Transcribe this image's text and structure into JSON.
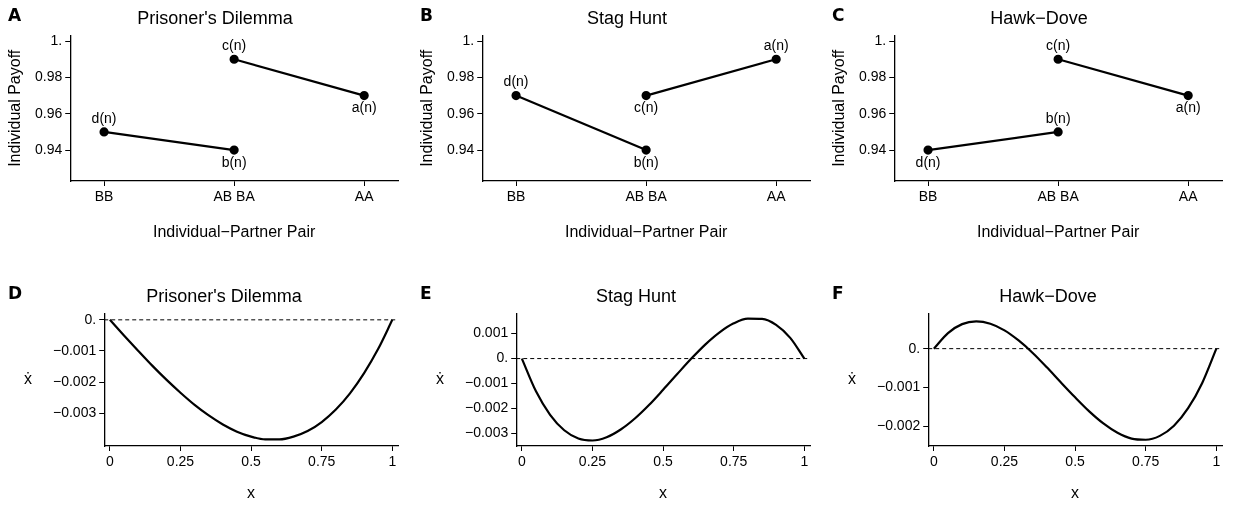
{
  "chart_data": [
    {
      "type": "line",
      "title": "Prisoner's Dilemma",
      "xlabel": "Individual−Partner Pair",
      "ylabel": "Individual Payoff",
      "categories": [
        "BB",
        "AB BA",
        "AA"
      ],
      "series": [
        {
          "color": "#000000",
          "values": [
            0.95,
            0.94,
            null
          ]
        },
        {
          "color": "#000000",
          "values": [
            null,
            0.99,
            0.97
          ]
        }
      ],
      "ylim": [
        0.923,
        1.003
      ],
      "yticks": [
        0.94,
        0.96,
        0.98,
        {
          "value": 1,
          "label": "1."
        }
      ],
      "marker": "circle",
      "line_style": "solid",
      "grid": false,
      "legend": false,
      "annotations": [
        "A",
        {
          "text": "d(n)",
          "x": "BB",
          "y": 0.95
        },
        {
          "text": "b(n)",
          "x": "AB BA",
          "y": 0.94
        },
        {
          "text": "c(n)",
          "x": "AB BA",
          "y": 0.99
        },
        {
          "text": "a(n)",
          "x": "AA",
          "y": 0.97
        }
      ]
    },
    {
      "type": "line",
      "title": "Stag Hunt",
      "xlabel": "Individual−Partner Pair",
      "ylabel": "Individual Payoff",
      "categories": [
        "BB",
        "AB BA",
        "AA"
      ],
      "series": [
        {
          "color": "#000000",
          "values": [
            0.97,
            0.94,
            null
          ]
        },
        {
          "color": "#000000",
          "values": [
            null,
            0.97,
            0.99
          ]
        }
      ],
      "ylim": [
        0.923,
        1.003
      ],
      "yticks": [
        0.94,
        0.96,
        0.98,
        {
          "value": 1,
          "label": "1."
        }
      ],
      "marker": "circle",
      "line_style": "solid",
      "grid": false,
      "legend": false,
      "annotations": [
        "B",
        {
          "text": "d(n)",
          "x": "BB",
          "y": 0.97
        },
        {
          "text": "b(n)",
          "x": "AB BA",
          "y": 0.94
        },
        {
          "text": "c(n)",
          "x": "AB BA",
          "y": 0.97
        },
        {
          "text": "a(n)",
          "x": "AA",
          "y": 0.99
        }
      ]
    },
    {
      "type": "line",
      "title": "Hawk−Dove",
      "xlabel": "Individual−Partner Pair",
      "ylabel": "Individual Payoff",
      "categories": [
        "BB",
        "AB BA",
        "AA"
      ],
      "series": [
        {
          "color": "#000000",
          "values": [
            0.94,
            0.95,
            null
          ]
        },
        {
          "color": "#000000",
          "values": [
            null,
            0.99,
            0.97
          ]
        }
      ],
      "ylim": [
        0.923,
        1.003
      ],
      "yticks": [
        0.94,
        0.96,
        0.98,
        {
          "value": 1,
          "label": "1."
        }
      ],
      "marker": "circle",
      "line_style": "solid",
      "grid": false,
      "legend": false,
      "annotations": [
        "C",
        {
          "text": "d(n)",
          "x": "BB",
          "y": 0.94
        },
        {
          "text": "b(n)",
          "x": "AB BA",
          "y": 0.95
        },
        {
          "text": "c(n)",
          "x": "AB BA",
          "y": 0.99
        },
        {
          "text": "a(n)",
          "x": "AA",
          "y": 0.97
        }
      ]
    },
    {
      "type": "line",
      "title": "Prisoner's Dilemma",
      "xlabel": "x",
      "ylabel": "ẋ",
      "x": [
        0,
        0.05,
        0.1,
        0.15,
        0.2,
        0.25,
        0.3,
        0.35,
        0.4,
        0.45,
        0.5,
        0.55,
        0.6,
        0.65,
        0.7,
        0.75,
        0.8,
        0.85,
        0.9,
        0.95,
        1
      ],
      "series": [
        {
          "color": "#000000",
          "values": [
            0,
            -0.0005,
            -0.00099,
            -0.00147,
            -0.00192,
            -0.00234,
            -0.00273,
            -0.00307,
            -0.00336,
            -0.00359,
            -0.00375,
            -0.00384,
            -0.00384,
            -0.00375,
            -0.00357,
            -0.00328,
            -0.00288,
            -0.00236,
            -0.00171,
            -0.00093,
            0
          ]
        }
      ],
      "xlim": [
        -0.02,
        1.02
      ],
      "xticks": [
        0,
        0.25,
        0.5,
        0.75,
        1
      ],
      "ylim": [
        -0.00405,
        0.0002
      ],
      "yticks": [
        {
          "value": -0.003,
          "label": "−0.003"
        },
        {
          "value": -0.002,
          "label": "−0.002"
        },
        {
          "value": -0.001,
          "label": "−0.001"
        },
        {
          "value": 0,
          "label": "0."
        }
      ],
      "marker": "none",
      "line_style": "solid",
      "grid": false,
      "legend": false,
      "ref_lines": [
        {
          "axis": "y",
          "value": 0,
          "color": "#000000",
          "line_style": "dashed"
        }
      ],
      "annotations": [
        "D"
      ]
    },
    {
      "type": "line",
      "title": "Stag Hunt",
      "xlabel": "x",
      "ylabel": "ẋ",
      "x": [
        0,
        0.05,
        0.1,
        0.15,
        0.2,
        0.25,
        0.3,
        0.35,
        0.4,
        0.45,
        0.5,
        0.55,
        0.6,
        0.65,
        0.7,
        0.75,
        0.8,
        0.85,
        0.9,
        0.95,
        1
      ],
      "series": [
        {
          "color": "#000000",
          "values": [
            0,
            -0.00131,
            -0.00225,
            -0.00287,
            -0.0032,
            -0.00328,
            -0.00315,
            -0.00284,
            -0.0024,
            -0.00186,
            -0.00125,
            -0.00062,
            0,
            0.00057,
            0.00105,
            0.00141,
            0.0016,
            0.00159,
            0.00135,
            0.00083,
            0
          ]
        }
      ],
      "xlim": [
        -0.02,
        1.02
      ],
      "xticks": [
        0,
        0.25,
        0.5,
        0.75,
        1
      ],
      "ylim": [
        -0.0035,
        0.0018
      ],
      "yticks": [
        {
          "value": -0.003,
          "label": "−0.003"
        },
        {
          "value": -0.002,
          "label": "−0.002"
        },
        {
          "value": -0.001,
          "label": "−0.001"
        },
        {
          "value": 0,
          "label": "0."
        },
        0.001
      ],
      "marker": "none",
      "line_style": "solid",
      "grid": false,
      "legend": false,
      "ref_lines": [
        {
          "axis": "y",
          "value": 0,
          "color": "#000000",
          "line_style": "dashed"
        }
      ],
      "annotations": [
        "E"
      ]
    },
    {
      "type": "line",
      "title": "Hawk−Dove",
      "xlabel": "x",
      "ylabel": "ẋ",
      "x": [
        0,
        0.05,
        0.1,
        0.15,
        0.2,
        0.25,
        0.3,
        0.35,
        0.4,
        0.45,
        0.5,
        0.55,
        0.6,
        0.65,
        0.7,
        0.75,
        0.8,
        0.85,
        0.9,
        0.95,
        1
      ],
      "series": [
        {
          "color": "#000000",
          "values": [
            0,
            0.0004,
            0.00063,
            0.0007,
            0.00064,
            0.00047,
            0.00021,
            -0.00011,
            -0.00048,
            -0.00087,
            -0.00125,
            -0.00161,
            -0.00192,
            -0.00216,
            -0.00231,
            -0.00234,
            -0.00224,
            -0.00198,
            -0.00153,
            -0.00088,
            0
          ]
        }
      ],
      "xlim": [
        -0.02,
        1.02
      ],
      "xticks": [
        0,
        0.25,
        0.5,
        0.75,
        1
      ],
      "ylim": [
        -0.0025,
        0.0009
      ],
      "yticks": [
        {
          "value": -0.002,
          "label": "−0.002"
        },
        {
          "value": -0.001,
          "label": "−0.001"
        },
        {
          "value": 0,
          "label": "0."
        }
      ],
      "marker": "none",
      "line_style": "solid",
      "grid": false,
      "legend": false,
      "ref_lines": [
        {
          "axis": "y",
          "value": 0,
          "color": "#000000",
          "line_style": "dashed"
        }
      ],
      "annotations": [
        "F"
      ]
    }
  ]
}
